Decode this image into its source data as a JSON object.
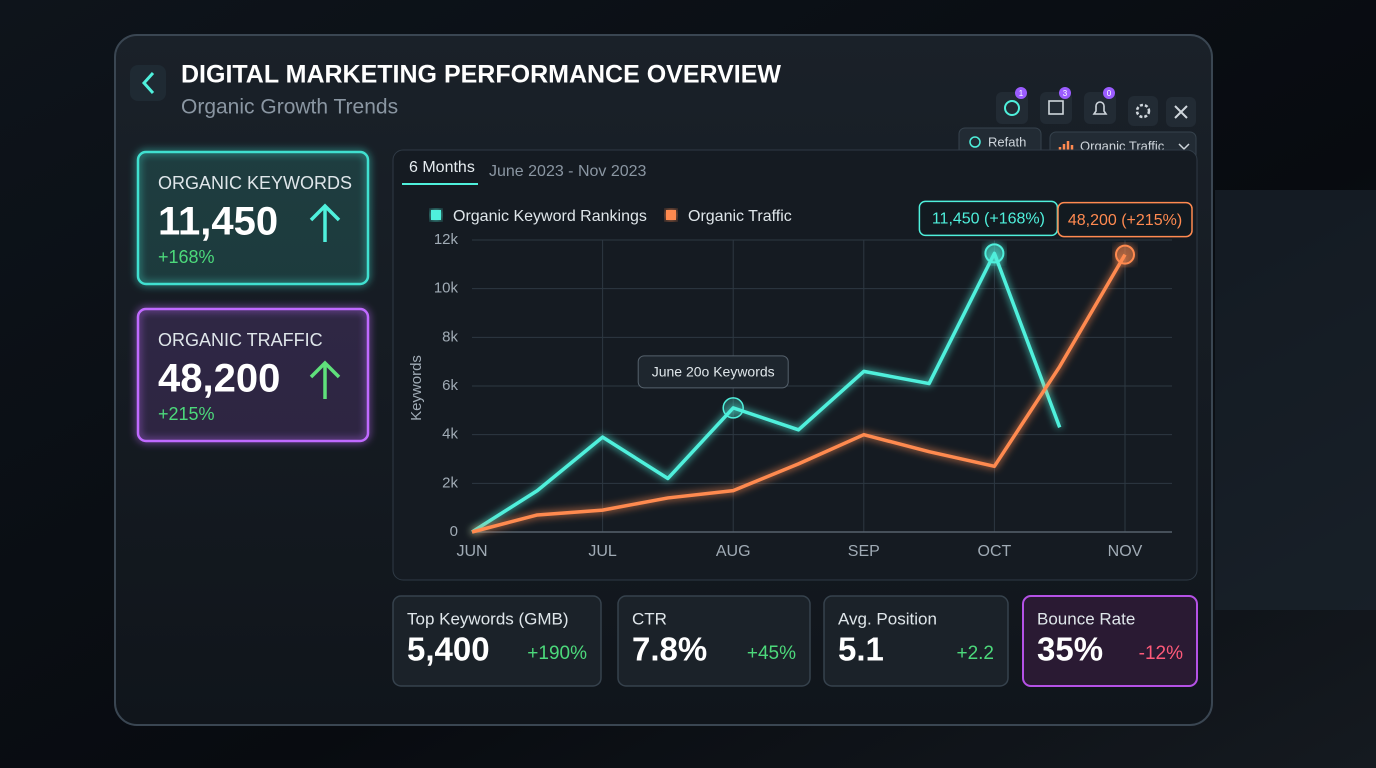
{
  "header": {
    "title": "DIGITAL MARKETING PERFORMANCE OVERVIEW",
    "subtitle": "Organic Growth Trends"
  },
  "toolbar": {
    "badges": [
      "1",
      "3",
      "0"
    ],
    "refresh": "Refath",
    "dropdown": "Organic Traffic"
  },
  "kpis": [
    {
      "label": "ORGANIC KEYWORDS",
      "value": "11,450",
      "change": "+168%",
      "color": "#3fe0d0"
    },
    {
      "label": "ORGANIC TRAFFIC",
      "value": "48,200",
      "change": "+215%",
      "color": "#c06bff"
    }
  ],
  "chart_data": {
    "type": "line",
    "tab": "6 Months",
    "range": "June 2023 - Nov 2023",
    "y_label": "Keywords",
    "categories": [
      "JUN",
      null,
      "JUL",
      null,
      "AUG",
      null,
      "SEP",
      null,
      "OCT",
      null,
      "NOV"
    ],
    "series": [
      {
        "name": "Organic Keyword Rankings",
        "color": "#4ff0dc",
        "values": [
          0,
          1.7,
          3.9,
          2.2,
          5.1,
          4.2,
          6.6,
          6.1,
          11.45,
          4.3,
          null
        ]
      },
      {
        "name": "Organic Traffic",
        "color": "#ff8a50",
        "values": [
          0,
          0.7,
          0.9,
          1.4,
          1.7,
          2.8,
          4.0,
          3.3,
          2.7,
          6.8,
          11.4
        ]
      }
    ],
    "ylim": [
      0,
      12
    ],
    "yticks": [
      {
        "value": 0,
        "label": "0"
      },
      {
        "value": 2,
        "label": "2k"
      },
      {
        "value": 4,
        "label": "4k"
      },
      {
        "value": 6,
        "label": "6k"
      },
      {
        "value": 8,
        "label": "8k"
      },
      {
        "value": 10,
        "label": "10k"
      },
      {
        "value": 12,
        "label": "12k"
      }
    ],
    "grid": true,
    "annotations": [
      "11,450 (+168%)",
      "48,200 (+215%)",
      "June 20o Keywords"
    ]
  },
  "stats": [
    {
      "label": "Top Keywords (GMB)",
      "value": "5,400",
      "change": "+190%",
      "color": "#4cd97b"
    },
    {
      "label": "CTR",
      "value": "7.8%",
      "change": "+45%",
      "color": "#4cd97b"
    },
    {
      "label": "Avg. Position",
      "value": "5.1",
      "change": "+2.2",
      "color": "#4cd97b"
    },
    {
      "label": "Bounce Rate",
      "value": "35%",
      "change": "-12%",
      "color": "#ff5a7a"
    }
  ]
}
